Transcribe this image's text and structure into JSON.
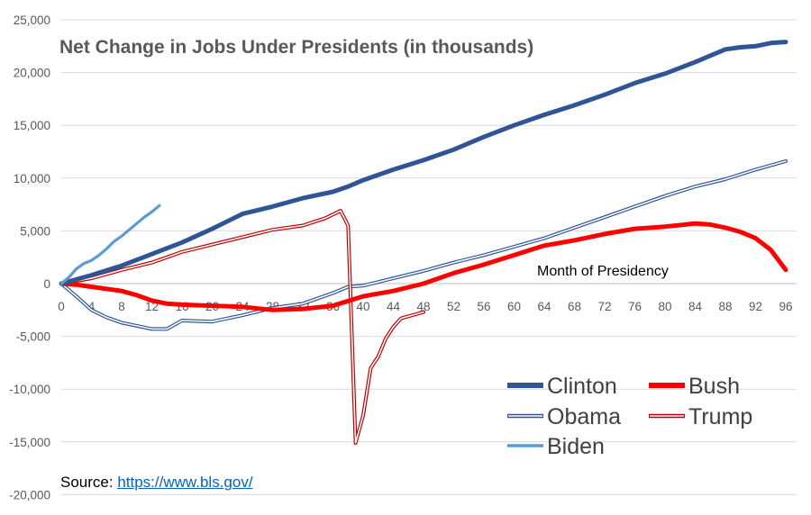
{
  "source": {
    "label": "Source:",
    "url_text": "https://www.bls.gov/"
  },
  "chart_data": {
    "type": "line",
    "title": "Net Change in Jobs Under Presidents (in thousands)",
    "annotation": "Month of Presidency",
    "xlabel": "",
    "ylabel": "",
    "xlim": [
      0,
      96
    ],
    "ylim": [
      -20000,
      25000
    ],
    "x_ticks": [
      0,
      4,
      8,
      12,
      16,
      20,
      24,
      28,
      32,
      36,
      40,
      44,
      48,
      52,
      56,
      60,
      64,
      68,
      72,
      76,
      80,
      84,
      88,
      92,
      96
    ],
    "y_ticks": [
      -20000,
      -15000,
      -10000,
      -5000,
      0,
      5000,
      10000,
      15000,
      20000,
      25000
    ],
    "y_tick_labels": [
      "-20,000",
      "-15,000",
      "-10,000",
      "-5,000",
      "0",
      "5,000",
      "10,000",
      "15,000",
      "20,000",
      "25,000"
    ],
    "grid": true,
    "legend_position": "bottom-right",
    "series": [
      {
        "name": "Clinton",
        "color": "#2f5597",
        "style": "thick",
        "points": [
          [
            0,
            0
          ],
          [
            4,
            800
          ],
          [
            8,
            1700
          ],
          [
            12,
            2800
          ],
          [
            16,
            3900
          ],
          [
            20,
            5200
          ],
          [
            24,
            6600
          ],
          [
            28,
            7300
          ],
          [
            32,
            8100
          ],
          [
            36,
            8700
          ],
          [
            38,
            9200
          ],
          [
            40,
            9800
          ],
          [
            44,
            10800
          ],
          [
            48,
            11700
          ],
          [
            52,
            12700
          ],
          [
            54,
            13300
          ],
          [
            56,
            13900
          ],
          [
            60,
            15000
          ],
          [
            64,
            16000
          ],
          [
            68,
            16900
          ],
          [
            72,
            17900
          ],
          [
            76,
            19000
          ],
          [
            80,
            19900
          ],
          [
            84,
            21000
          ],
          [
            86,
            21600
          ],
          [
            88,
            22200
          ],
          [
            90,
            22400
          ],
          [
            92,
            22500
          ],
          [
            94,
            22800
          ],
          [
            96,
            22900
          ]
        ]
      },
      {
        "name": "Bush",
        "color": "#ff0000",
        "style": "thick",
        "points": [
          [
            0,
            0
          ],
          [
            2,
            -100
          ],
          [
            4,
            -300
          ],
          [
            8,
            -700
          ],
          [
            10,
            -1100
          ],
          [
            12,
            -1600
          ],
          [
            14,
            -1900
          ],
          [
            16,
            -2000
          ],
          [
            20,
            -2100
          ],
          [
            24,
            -2200
          ],
          [
            28,
            -2500
          ],
          [
            32,
            -2400
          ],
          [
            36,
            -2100
          ],
          [
            40,
            -1200
          ],
          [
            44,
            -700
          ],
          [
            48,
            0
          ],
          [
            52,
            1000
          ],
          [
            56,
            1800
          ],
          [
            60,
            2700
          ],
          [
            64,
            3600
          ],
          [
            68,
            4100
          ],
          [
            72,
            4700
          ],
          [
            76,
            5200
          ],
          [
            80,
            5400
          ],
          [
            84,
            5700
          ],
          [
            86,
            5600
          ],
          [
            88,
            5300
          ],
          [
            90,
            4900
          ],
          [
            92,
            4300
          ],
          [
            94,
            3200
          ],
          [
            96,
            1300
          ]
        ]
      },
      {
        "name": "Obama",
        "color": "#2f5597",
        "style": "double",
        "points": [
          [
            0,
            0
          ],
          [
            2,
            -1200
          ],
          [
            4,
            -2500
          ],
          [
            6,
            -3200
          ],
          [
            8,
            -3700
          ],
          [
            10,
            -4000
          ],
          [
            12,
            -4300
          ],
          [
            14,
            -4300
          ],
          [
            16,
            -3500
          ],
          [
            20,
            -3600
          ],
          [
            24,
            -3000
          ],
          [
            28,
            -2300
          ],
          [
            32,
            -1900
          ],
          [
            36,
            -900
          ],
          [
            38,
            -300
          ],
          [
            40,
            -200
          ],
          [
            44,
            500
          ],
          [
            48,
            1200
          ],
          [
            52,
            2000
          ],
          [
            56,
            2700
          ],
          [
            60,
            3500
          ],
          [
            64,
            4300
          ],
          [
            68,
            5300
          ],
          [
            72,
            6300
          ],
          [
            76,
            7300
          ],
          [
            80,
            8300
          ],
          [
            84,
            9200
          ],
          [
            88,
            9900
          ],
          [
            92,
            10800
          ],
          [
            96,
            11600
          ]
        ]
      },
      {
        "name": "Trump",
        "color": "#c00000",
        "style": "double",
        "points": [
          [
            0,
            0
          ],
          [
            4,
            500
          ],
          [
            8,
            1300
          ],
          [
            12,
            2000
          ],
          [
            14,
            2500
          ],
          [
            16,
            3000
          ],
          [
            20,
            3700
          ],
          [
            24,
            4400
          ],
          [
            28,
            5100
          ],
          [
            32,
            5500
          ],
          [
            35,
            6200
          ],
          [
            37,
            6900
          ],
          [
            38,
            5500
          ],
          [
            39,
            -15100
          ],
          [
            40,
            -12500
          ],
          [
            41,
            -8000
          ],
          [
            42,
            -6900
          ],
          [
            43,
            -5200
          ],
          [
            44,
            -4100
          ],
          [
            45,
            -3300
          ],
          [
            46,
            -3100
          ],
          [
            47,
            -2900
          ],
          [
            48,
            -2700
          ]
        ]
      },
      {
        "name": "Biden",
        "color": "#5b9bd5",
        "style": "medium",
        "points": [
          [
            0,
            0
          ],
          [
            1,
            600
          ],
          [
            2,
            1400
          ],
          [
            3,
            1900
          ],
          [
            4,
            2200
          ],
          [
            5,
            2700
          ],
          [
            6,
            3300
          ],
          [
            7,
            4000
          ],
          [
            8,
            4500
          ],
          [
            9,
            5100
          ],
          [
            10,
            5700
          ],
          [
            11,
            6300
          ],
          [
            12,
            6800
          ],
          [
            13,
            7400
          ]
        ]
      }
    ]
  }
}
